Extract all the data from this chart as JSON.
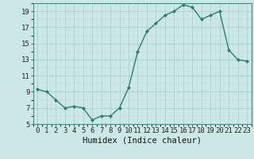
{
  "x": [
    0,
    1,
    2,
    3,
    4,
    5,
    6,
    7,
    8,
    9,
    10,
    11,
    12,
    13,
    14,
    15,
    16,
    17,
    18,
    19,
    20,
    21,
    22,
    23
  ],
  "y": [
    9.3,
    9.0,
    8.0,
    7.0,
    7.2,
    7.0,
    5.5,
    6.0,
    6.0,
    7.0,
    9.5,
    14.0,
    16.5,
    17.5,
    18.5,
    19.0,
    19.8,
    19.5,
    18.0,
    18.5,
    19.0,
    14.2,
    13.0,
    12.8
  ],
  "line_color": "#2e7d6e",
  "marker": "D",
  "marker_size": 2.0,
  "bg_color": "#cce8e6",
  "grid_major_color": "#aacfcc",
  "grid_minor_color": "#bbdbd8",
  "xlabel": "Humidex (Indice chaleur)",
  "xlim": [
    -0.5,
    23.5
  ],
  "ylim": [
    5,
    20
  ],
  "yticks": [
    5,
    7,
    9,
    11,
    13,
    15,
    17,
    19
  ],
  "xticks": [
    0,
    1,
    2,
    3,
    4,
    5,
    6,
    7,
    8,
    9,
    10,
    11,
    12,
    13,
    14,
    15,
    16,
    17,
    18,
    19,
    20,
    21,
    22,
    23
  ],
  "xlabel_fontsize": 7.5,
  "tick_fontsize": 6.5,
  "line_width": 1.0,
  "spine_color": "#4a8a80"
}
